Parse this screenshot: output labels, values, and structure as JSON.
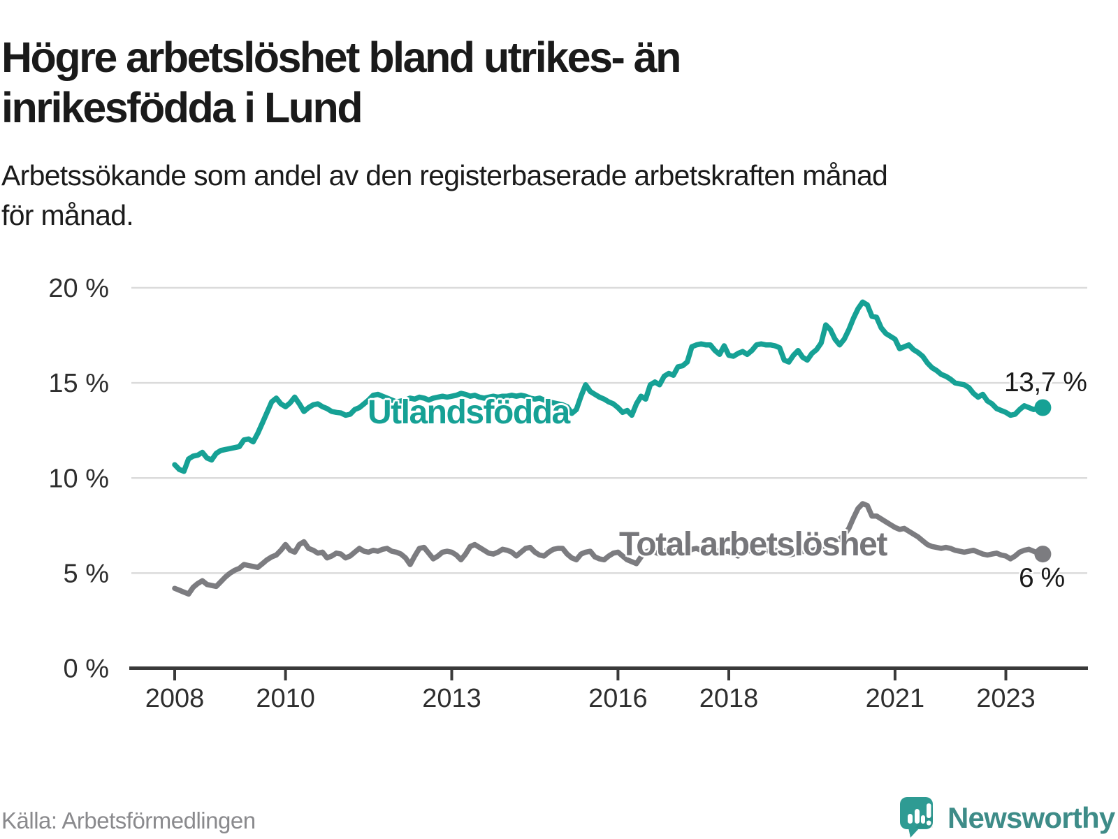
{
  "header": {
    "title": "Högre arbetslöshet bland utrikes- än\ninrikesfödda i Lund",
    "subtitle": "Arbetssökande som andel av den registerbaserade arbetskraften månad\nför månad."
  },
  "footer": {
    "source": "Källa: Arbetsförmedlingen",
    "brand": "Newsworthy"
  },
  "colors": {
    "accent_teal": "#16a195",
    "line_gray": "#7c7c80",
    "label_gray": "#76767a",
    "axis": "#3a3a3a",
    "gridline": "#dbdbdb",
    "tick_text": "#2e2e2e",
    "brand_icon_teal": "#2e9b93",
    "brand_text_teal": "#3e8c88"
  },
  "chart_data": {
    "type": "line",
    "title": "Högre arbetslöshet bland utrikes- än inrikesfödda i Lund",
    "xlabel": "",
    "ylabel": "",
    "unit": "%",
    "ylim": [
      0,
      20
    ],
    "y_tick_values": [
      20,
      15,
      10,
      5,
      0
    ],
    "y_tick_suffix": " %",
    "x_tick_years": [
      2008,
      2010,
      2013,
      2016,
      2018,
      2021,
      2023
    ],
    "x_start": "2008-01",
    "x_end": "2023-09",
    "grid": "horizontal",
    "legend_position": "inline-labels",
    "series": [
      {
        "name": "Utlandsfödda",
        "color": "#16a195",
        "end_label": "13,7 %",
        "end_value": 13.7,
        "values": [
          10.7,
          10.45,
          10.35,
          11.0,
          11.15,
          11.2,
          11.35,
          11.05,
          10.95,
          11.3,
          11.45,
          11.5,
          11.55,
          11.6,
          11.65,
          12.0,
          12.05,
          11.9,
          12.35,
          12.9,
          13.45,
          14.0,
          14.2,
          13.9,
          13.75,
          13.95,
          14.25,
          13.9,
          13.5,
          13.7,
          13.85,
          13.9,
          13.75,
          13.65,
          13.5,
          13.45,
          13.42,
          13.3,
          13.35,
          13.6,
          13.7,
          13.9,
          14.1,
          14.35,
          14.4,
          14.3,
          14.2,
          14.1,
          14.0,
          14.05,
          14.1,
          14.2,
          14.15,
          14.25,
          14.2,
          14.1,
          14.2,
          14.25,
          14.3,
          14.25,
          14.3,
          14.35,
          14.45,
          14.4,
          14.3,
          14.35,
          14.25,
          14.2,
          14.25,
          14.3,
          14.25,
          14.3,
          14.3,
          14.35,
          14.3,
          14.35,
          14.3,
          14.2,
          14.15,
          14.2,
          14.1,
          14.0,
          13.95,
          13.9,
          13.85,
          13.75,
          13.4,
          13.6,
          14.3,
          14.9,
          14.55,
          14.4,
          14.25,
          14.15,
          14.0,
          13.9,
          13.7,
          13.45,
          13.55,
          13.3,
          13.9,
          14.3,
          14.15,
          14.9,
          15.05,
          14.9,
          15.35,
          15.5,
          15.4,
          15.85,
          15.9,
          16.1,
          16.9,
          17.0,
          17.05,
          17.0,
          17.0,
          16.7,
          16.5,
          16.95,
          16.45,
          16.4,
          16.55,
          16.65,
          16.5,
          16.7,
          17.0,
          17.05,
          17.0,
          17.0,
          16.95,
          16.85,
          16.2,
          16.1,
          16.45,
          16.7,
          16.35,
          16.2,
          16.55,
          16.75,
          17.1,
          18.05,
          17.8,
          17.3,
          17.0,
          17.3,
          17.8,
          18.4,
          18.9,
          19.25,
          19.1,
          18.5,
          18.45,
          17.9,
          17.6,
          17.45,
          17.3,
          16.8,
          16.9,
          17.0,
          16.75,
          16.6,
          16.4,
          16.05,
          15.8,
          15.65,
          15.45,
          15.35,
          15.2,
          15.0,
          14.95,
          14.9,
          14.75,
          14.45,
          14.25,
          14.4,
          14.05,
          13.9,
          13.65,
          13.55,
          13.45,
          13.3,
          13.35,
          13.6,
          13.8,
          13.7,
          13.6,
          13.65,
          13.7
        ]
      },
      {
        "name": "Total arbetslöshet",
        "color": "#7c7c80",
        "end_label": "6 %",
        "end_value": 6.0,
        "values": [
          4.2,
          4.1,
          4.0,
          3.9,
          4.25,
          4.45,
          4.6,
          4.4,
          4.35,
          4.3,
          4.55,
          4.8,
          5.0,
          5.15,
          5.25,
          5.45,
          5.4,
          5.35,
          5.3,
          5.5,
          5.7,
          5.85,
          5.95,
          6.2,
          6.5,
          6.2,
          6.1,
          6.5,
          6.65,
          6.3,
          6.2,
          6.05,
          6.1,
          5.8,
          5.9,
          6.05,
          6.0,
          5.8,
          5.9,
          6.1,
          6.3,
          6.15,
          6.1,
          6.2,
          6.15,
          6.25,
          6.3,
          6.15,
          6.1,
          6.0,
          5.8,
          5.45,
          5.9,
          6.3,
          6.35,
          6.05,
          5.75,
          5.9,
          6.1,
          6.15,
          6.1,
          5.95,
          5.7,
          6.0,
          6.4,
          6.5,
          6.35,
          6.2,
          6.05,
          6.0,
          6.1,
          6.25,
          6.2,
          6.1,
          5.9,
          6.1,
          6.3,
          6.35,
          6.1,
          5.95,
          5.9,
          6.1,
          6.25,
          6.3,
          6.3,
          6.0,
          5.8,
          5.7,
          6.0,
          6.1,
          6.15,
          5.85,
          5.75,
          5.7,
          5.9,
          6.05,
          6.1,
          5.9,
          5.7,
          5.6,
          5.5,
          5.85,
          6.1,
          6.2,
          6.1,
          6.0,
          6.15,
          6.25,
          6.3,
          6.1,
          5.95,
          6.1,
          6.25,
          6.3,
          6.2,
          6.1,
          6.05,
          6.1,
          6.2,
          6.15,
          6.15,
          6.0,
          5.9,
          6.05,
          6.2,
          6.15,
          6.1,
          6.05,
          6.15,
          6.25,
          6.2,
          6.1,
          6.1,
          5.95,
          6.0,
          6.2,
          6.15,
          6.1,
          6.2,
          6.25,
          6.3,
          6.4,
          6.5,
          6.6,
          6.8,
          7.0,
          7.35,
          7.9,
          8.4,
          8.65,
          8.55,
          8.0,
          8.0,
          7.85,
          7.7,
          7.55,
          7.4,
          7.3,
          7.35,
          7.2,
          7.05,
          6.9,
          6.7,
          6.5,
          6.4,
          6.35,
          6.3,
          6.35,
          6.3,
          6.2,
          6.15,
          6.1,
          6.15,
          6.2,
          6.1,
          6.0,
          5.95,
          6.0,
          6.05,
          5.95,
          5.9,
          5.75,
          5.9,
          6.1,
          6.2,
          6.25,
          6.15,
          6.05,
          6.0
        ]
      }
    ]
  }
}
